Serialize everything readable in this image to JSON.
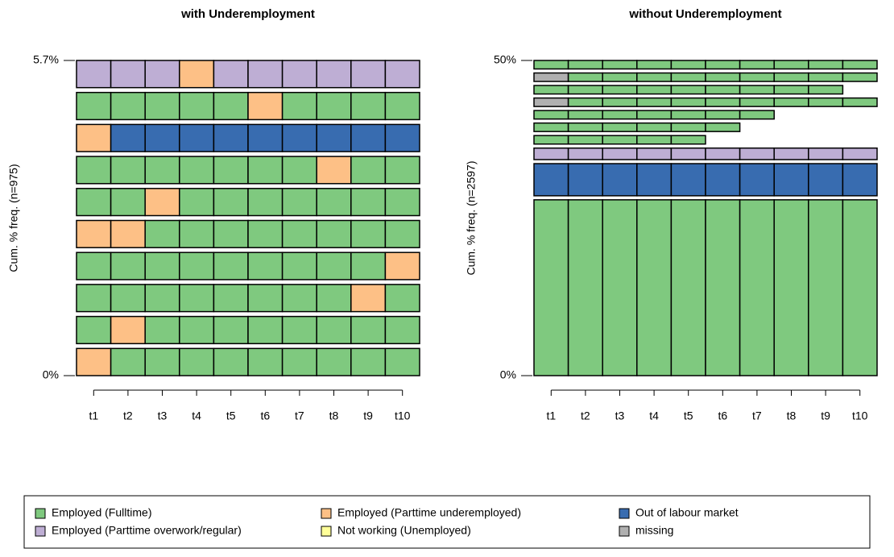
{
  "chart_data": [
    {
      "type": "seqfplot",
      "title": "with Underemployment",
      "y_label": "Cum. % freq. (n=975)",
      "ylim": [
        0,
        5.7
      ],
      "yticks": [
        {
          "value": 0,
          "label": "0%"
        },
        {
          "value": 5.7,
          "label": "5.7%"
        }
      ],
      "categories": [
        "t1",
        "t2",
        "t3",
        "t4",
        "t5",
        "t6",
        "t7",
        "t8",
        "t9",
        "t10"
      ],
      "freqs": [
        0.57,
        0.57,
        0.57,
        0.57,
        0.57,
        0.57,
        0.57,
        0.57,
        0.57,
        0.57
      ],
      "sequences": [
        [
          2,
          0,
          0,
          0,
          0,
          0,
          0,
          0,
          0,
          0
        ],
        [
          0,
          2,
          0,
          0,
          0,
          0,
          0,
          0,
          0,
          0
        ],
        [
          0,
          0,
          0,
          0,
          0,
          0,
          0,
          0,
          2,
          0
        ],
        [
          0,
          0,
          0,
          0,
          0,
          0,
          0,
          0,
          0,
          2
        ],
        [
          2,
          2,
          0,
          0,
          0,
          0,
          0,
          0,
          0,
          0
        ],
        [
          0,
          0,
          2,
          0,
          0,
          0,
          0,
          0,
          0,
          0
        ],
        [
          0,
          0,
          0,
          0,
          0,
          0,
          0,
          2,
          0,
          0
        ],
        [
          2,
          4,
          4,
          4,
          4,
          4,
          4,
          4,
          4,
          4
        ],
        [
          0,
          0,
          0,
          0,
          0,
          2,
          0,
          0,
          0,
          0
        ],
        [
          1,
          1,
          1,
          2,
          1,
          1,
          1,
          1,
          1,
          1
        ]
      ]
    },
    {
      "type": "seqfplot",
      "title": "without Underemployment",
      "y_label": "Cum. % freq. (n=2597)",
      "ylim": [
        0,
        50
      ],
      "yticks": [
        {
          "value": 0,
          "label": "0%"
        },
        {
          "value": 50,
          "label": "50%"
        }
      ],
      "categories": [
        "t1",
        "t2",
        "t3",
        "t4",
        "t5",
        "t6",
        "t7",
        "t8",
        "t9",
        "t10"
      ],
      "freqs": [
        29.0,
        5.3,
        1.9,
        1.4,
        1.4,
        1.4,
        1.4,
        1.4,
        1.4,
        1.4
      ],
      "sequences": [
        [
          0,
          0,
          0,
          0,
          0,
          0,
          0,
          0,
          0,
          0
        ],
        [
          4,
          4,
          4,
          4,
          4,
          4,
          4,
          4,
          4,
          4
        ],
        [
          1,
          1,
          1,
          1,
          1,
          1,
          1,
          1,
          1,
          1
        ],
        [
          0,
          0,
          0,
          0,
          0
        ],
        [
          0,
          0,
          0,
          0,
          0,
          0
        ],
        [
          0,
          0,
          0,
          0,
          0,
          0,
          0
        ],
        [
          5,
          0,
          0,
          0,
          0,
          0,
          0,
          0,
          0,
          0
        ],
        [
          0,
          0,
          0,
          0,
          0,
          0,
          0,
          0,
          0
        ],
        [
          5,
          0,
          0,
          0,
          0,
          0,
          0,
          0,
          0,
          0
        ],
        [
          0,
          0,
          0,
          0,
          0,
          0,
          0,
          0,
          0,
          0
        ]
      ]
    }
  ],
  "legend": {
    "states": [
      {
        "name": "Employed (Fulltime)",
        "color": "#7fc97f"
      },
      {
        "name": "Employed (Parttime overwork/regular)",
        "color": "#beaed4"
      },
      {
        "name": "Employed (Parttime underemployed)",
        "color": "#fdc086"
      },
      {
        "name": "Not working (Unemployed)",
        "color": "#ffff99"
      },
      {
        "name": "Out of labour market",
        "color": "#386cb0"
      },
      {
        "name": "missing",
        "color": "#b0b0b0"
      }
    ]
  }
}
